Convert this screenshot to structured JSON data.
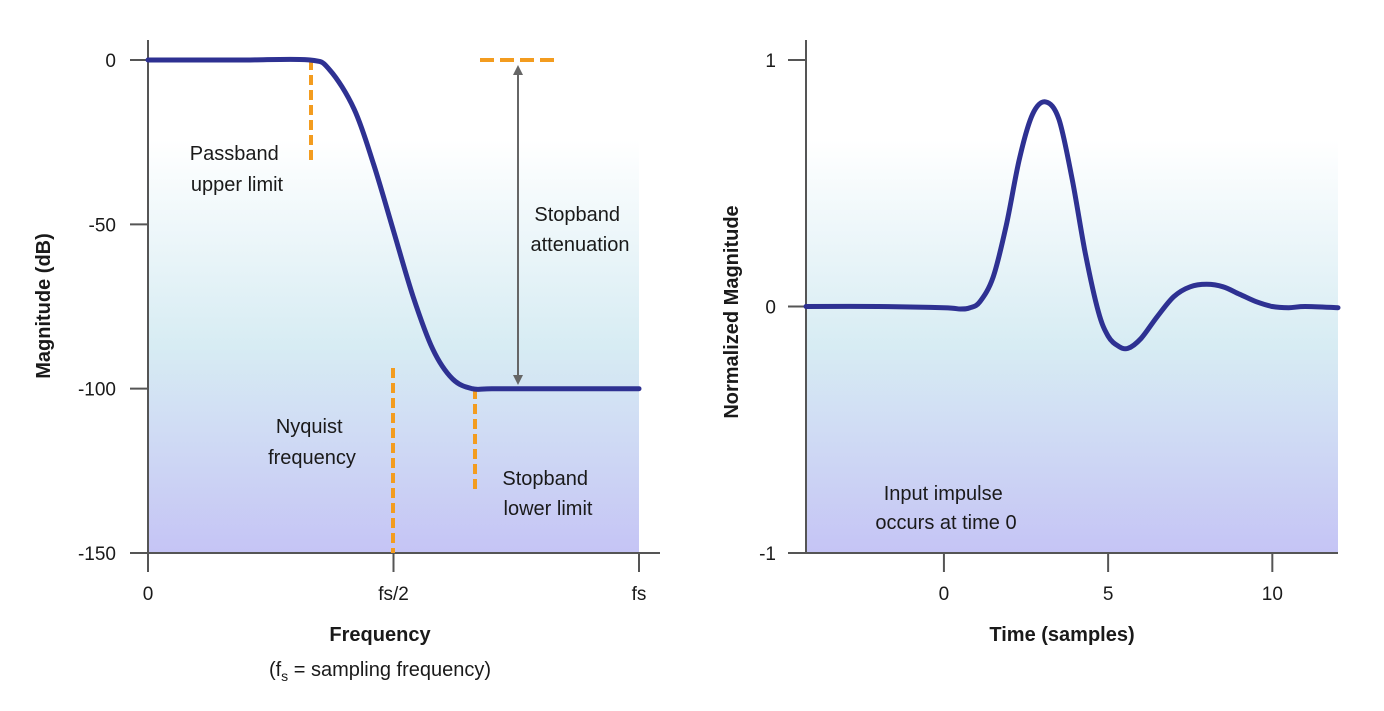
{
  "chart_data": [
    {
      "type": "line",
      "xlabel": "Frequency",
      "xlabel_note": {
        "prefix": "(f",
        "subscript": "s",
        "suffix": " = sampling frequency)"
      },
      "ylabel": "Magnitude (dB)",
      "ylim": [
        -150,
        0
      ],
      "yticks": [
        0,
        -50,
        -100,
        -150
      ],
      "xticks": [
        {
          "value": 0,
          "label": "0"
        },
        {
          "value": 0.5,
          "label": "fs/2"
        },
        {
          "value": 1,
          "label": "fs"
        }
      ],
      "xlim": [
        0,
        1
      ],
      "series": [
        {
          "color": "#2e3192",
          "x": [
            0,
            0.1,
            0.2,
            0.33,
            0.37,
            0.42,
            0.46,
            0.5,
            0.54,
            0.58,
            0.62,
            0.66,
            0.7,
            0.8,
            0.9,
            1.0
          ],
          "y": [
            0,
            0,
            0,
            0,
            -3,
            -15,
            -32,
            -52,
            -72,
            -88,
            -97,
            -100,
            -100,
            -100,
            -100,
            -100
          ]
        }
      ],
      "annotations": {
        "passband": {
          "lines": [
            "Passband",
            "upper limit"
          ]
        },
        "nyquist": {
          "lines": [
            "Nyquist",
            "frequency"
          ]
        },
        "stopband_lower": {
          "lines": [
            "Stopband",
            "lower limit"
          ]
        },
        "stopband_att": {
          "lines": [
            "Stopband",
            "attenuation"
          ]
        }
      },
      "colors": {
        "curve": "#2e3192",
        "marker": "#f39c1f",
        "arrow": "#666666"
      }
    },
    {
      "type": "line",
      "xlabel": "Time (samples)",
      "ylabel": "Normalized Magnitude",
      "ylim": [
        -1,
        1
      ],
      "xlim": [
        -4.2,
        12
      ],
      "yticks": [
        1,
        0,
        -1
      ],
      "xticks": [
        0,
        5,
        10
      ],
      "series": [
        {
          "color": "#2e3192",
          "x": [
            -4.2,
            -2,
            0,
            0.5,
            0.8,
            1.1,
            1.5,
            1.9,
            2.3,
            2.7,
            3.1,
            3.5,
            3.9,
            4.3,
            4.7,
            5.0,
            5.3,
            5.6,
            6.0,
            6.5,
            7.0,
            7.5,
            8.0,
            8.5,
            9.0,
            9.5,
            10.0,
            10.5,
            11.0,
            12.0
          ],
          "y": [
            0,
            0,
            -0.005,
            -0.01,
            -0.005,
            0.02,
            0.12,
            0.33,
            0.6,
            0.78,
            0.83,
            0.76,
            0.52,
            0.22,
            -0.02,
            -0.12,
            -0.16,
            -0.17,
            -0.13,
            -0.04,
            0.04,
            0.08,
            0.09,
            0.08,
            0.05,
            0.02,
            0.0,
            -0.005,
            0.0,
            -0.005
          ]
        }
      ],
      "annotations": {
        "impulse": {
          "lines": [
            "Input impulse",
            "occurs at time 0"
          ]
        }
      },
      "colors": {
        "curve": "#2e3192"
      }
    }
  ],
  "colors": {
    "gradient_top": "#ffffff",
    "gradient_mid": "#d7ecf3",
    "gradient_bottom": "#c5c4f5",
    "axis": "#555555"
  }
}
